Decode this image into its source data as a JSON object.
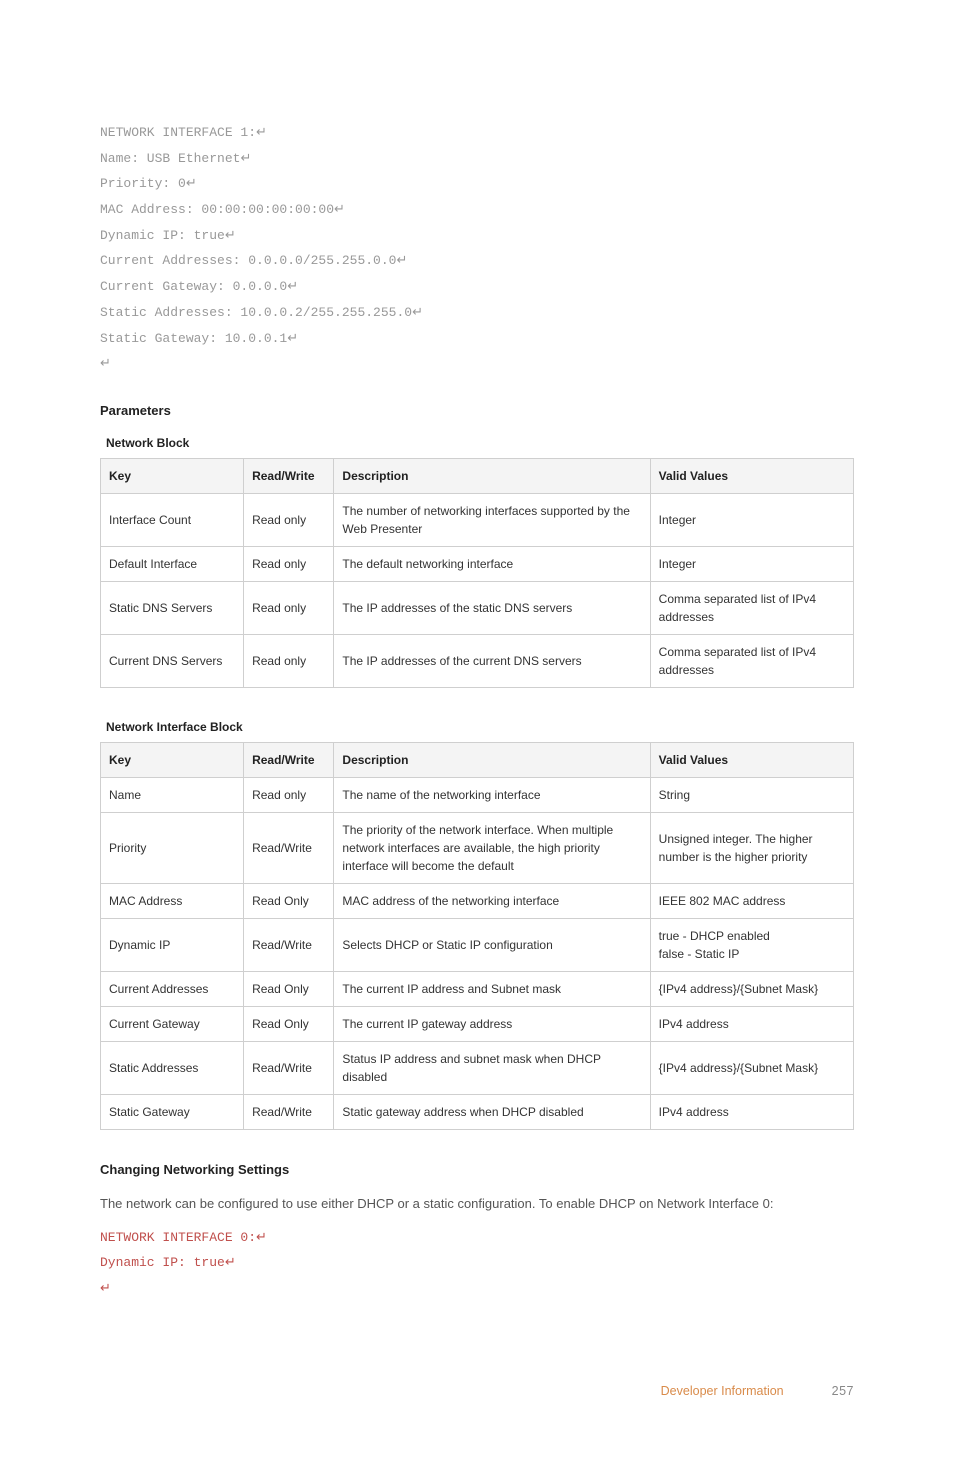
{
  "code_block_1": {
    "lines": [
      "NETWORK INTERFACE 1:",
      "Name: USB Ethernet",
      "Priority: 0",
      "MAC Address: 00:00:00:00:00:00",
      "Dynamic IP: true",
      "Current Addresses: 0.0.0.0/255.255.0.0",
      "Current Gateway: 0.0.0.0",
      "Static Addresses: 10.0.0.2/255.255.255.0",
      "Static Gateway: 10.0.0.1",
      ""
    ],
    "color": "#999999"
  },
  "parameters_heading": "Parameters",
  "table1": {
    "caption": "Network Block",
    "headers": [
      "Key",
      "Read/Write",
      "Description",
      "Valid Values"
    ],
    "rows": [
      [
        "Interface Count",
        "Read only",
        "The number of networking interfaces supported by the Web Presenter",
        "Integer"
      ],
      [
        "Default Interface",
        "Read only",
        "The default networking interface",
        "Integer"
      ],
      [
        "Static DNS Servers",
        "Read only",
        "The IP addresses of the static DNS servers",
        "Comma separated list of IPv4 addresses"
      ],
      [
        "Current DNS Servers",
        "Read only",
        "The IP addresses of the current DNS servers",
        "Comma separated list of IPv4 addresses"
      ]
    ]
  },
  "table2": {
    "caption": "Network Interface Block",
    "headers": [
      "Key",
      "Read/Write",
      "Description",
      "Valid Values"
    ],
    "rows": [
      [
        "Name",
        "Read only",
        "The name of the networking interface",
        "String"
      ],
      [
        "Priority",
        "Read/Write",
        "The priority of the network interface. When multiple network interfaces are available, the high priority interface will become the default",
        "Unsigned integer. The higher number is the higher priority"
      ],
      [
        "MAC Address",
        "Read Only",
        "MAC address of the networking interface",
        "IEEE 802 MAC address"
      ],
      [
        "Dynamic IP",
        "Read/Write",
        "Selects DHCP or Static IP configuration",
        "true - DHCP enabled\nfalse - Static IP"
      ],
      [
        "Current Addresses",
        "Read Only",
        "The current IP address and Subnet mask",
        "{IPv4 address}/{Subnet Mask}"
      ],
      [
        "Current Gateway",
        "Read Only",
        "The current IP gateway address",
        "IPv4 address"
      ],
      [
        "Static Addresses",
        "Read/Write",
        "Status IP address and subnet mask when DHCP disabled",
        "{IPv4 address}/{Subnet Mask}"
      ],
      [
        "Static Gateway",
        "Read/Write",
        "Static gateway address when DHCP disabled",
        "IPv4 address"
      ]
    ]
  },
  "changing_heading": "Changing Networking Settings",
  "changing_body": "The network can be configured to use either DHCP or a static configuration. To enable DHCP on Network Interface 0:",
  "code_block_2": {
    "lines": [
      "NETWORK INTERFACE 0:",
      "Dynamic IP: true",
      ""
    ],
    "color": "#c0504d"
  },
  "footer": {
    "section": "Developer Information",
    "page": "257"
  },
  "return_glyph": "↵",
  "style": {
    "background_color": "#ffffff",
    "text_color": "#333333",
    "code_gray": "#999999",
    "code_red": "#c0504d",
    "table_border": "#cfcfcf",
    "table_header_bg": "#f4f4f4",
    "footer_orange": "#d98b4a",
    "footer_gray": "#888888",
    "body_font": "Helvetica Neue, Arial, sans-serif",
    "code_font": "Courier New, monospace",
    "base_fontsize_pt": 9.5,
    "heading_fontsize_pt": 10,
    "table_fontsize_pt": 9
  }
}
